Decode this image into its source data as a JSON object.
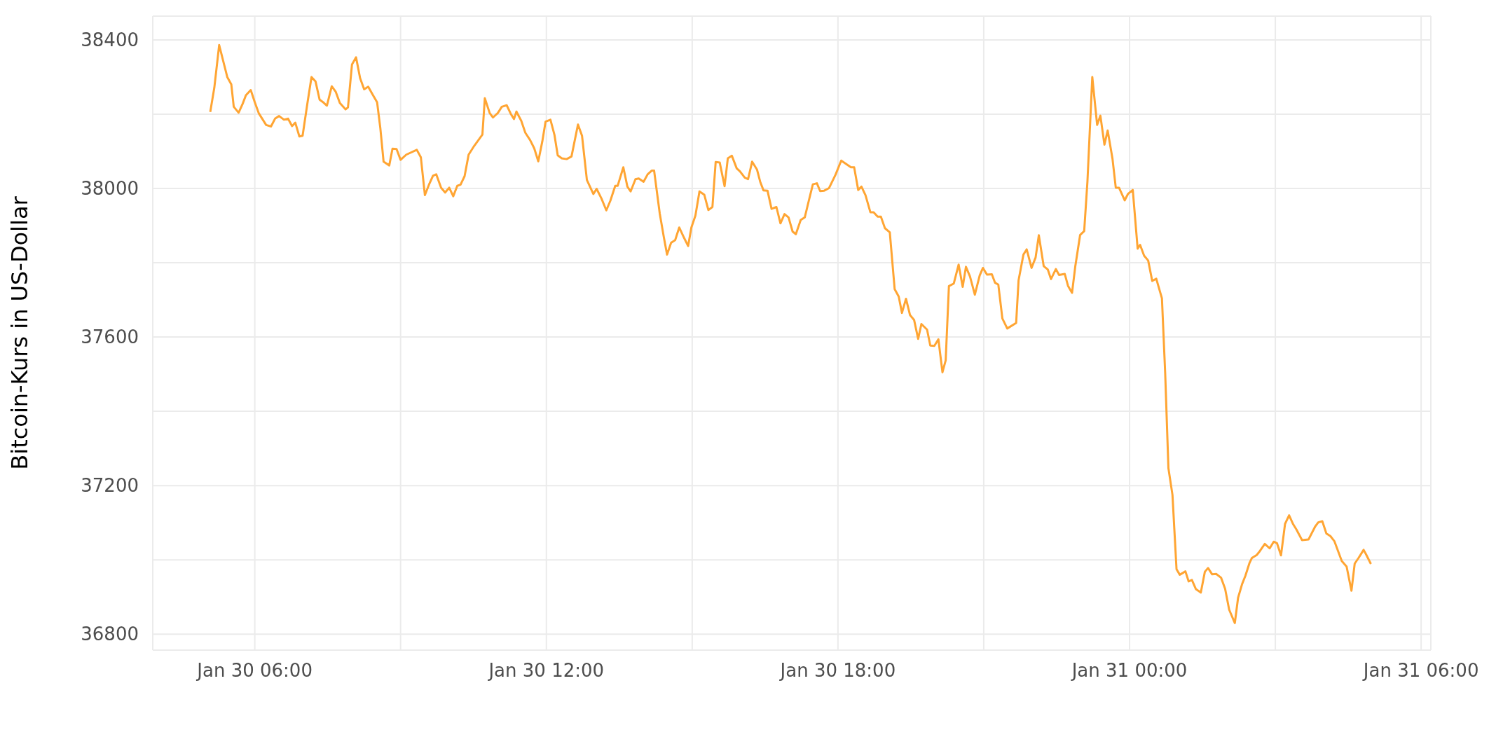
{
  "chart_data": {
    "type": "line",
    "ylabel": "Bitcoin-Kurs in US-Dollar",
    "x": [
      "--01-30T05:05",
      "--01-30T05:10",
      "--01-30T05:16",
      "--01-30T05:26",
      "--01-30T05:31",
      "--01-30T05:34",
      "--01-30T05:40",
      "--01-30T05:45",
      "--01-30T05:49",
      "--01-30T05:55",
      "--01-30T06:00",
      "--01-30T06:05",
      "--01-30T06:14",
      "--01-30T06:20",
      "--01-30T06:25",
      "--01-30T06:30",
      "--01-30T06:36",
      "--01-30T06:41",
      "--01-30T06:46",
      "--01-30T06:50",
      "--01-30T06:55",
      "--01-30T06:59",
      "--01-30T07:05",
      "--01-30T07:10",
      "--01-30T07:15",
      "--01-30T07:20",
      "--01-30T07:25",
      "--01-30T07:29",
      "--01-30T07:35",
      "--01-30T07:40",
      "--01-30T07:45",
      "--01-30T07:52",
      "--01-30T07:55",
      "--01-30T08:00",
      "--01-30T08:05",
      "--01-30T08:10",
      "--01-30T08:15",
      "--01-30T08:20",
      "--01-30T08:26",
      "--01-30T08:31",
      "--01-30T08:35",
      "--01-30T08:39",
      "--01-30T08:46",
      "--01-30T08:50",
      "--01-30T08:55",
      "--01-30T09:00",
      "--01-30T09:07",
      "--01-30T09:20",
      "--01-30T09:25",
      "--01-30T09:30",
      "--01-30T09:35",
      "--01-30T09:40",
      "--01-30T09:44",
      "--01-30T09:50",
      "--01-30T09:55",
      "--01-30T10:00",
      "--01-30T10:05",
      "--01-30T10:10",
      "--01-30T10:14",
      "--01-30T10:19",
      "--01-30T10:24",
      "--01-30T10:31",
      "--01-30T10:41",
      "--01-30T10:44",
      "--01-30T10:50",
      "--01-30T10:54",
      "--01-30T11:00",
      "--01-30T11:05",
      "--01-30T11:11",
      "--01-30T11:16",
      "--01-30T11:20",
      "--01-30T11:23",
      "--01-30T11:29",
      "--01-30T11:34",
      "--01-30T11:40",
      "--01-30T11:45",
      "--01-30T11:50",
      "--01-30T11:55",
      "--01-30T11:59",
      "--01-30T12:05",
      "--01-30T12:10",
      "--01-30T12:14",
      "--01-30T12:19",
      "--01-30T12:25",
      "--01-30T12:31",
      "--01-30T12:39",
      "--01-30T12:44",
      "--01-30T12:50",
      "--01-30T12:58",
      "--01-30T13:02",
      "--01-30T13:08",
      "--01-30T13:14",
      "--01-30T13:19",
      "--01-30T13:25",
      "--01-30T13:28",
      "--01-30T13:35",
      "--01-30T13:40",
      "--01-30T13:44",
      "--01-30T13:50",
      "--01-30T13:54",
      "--01-30T14:00",
      "--01-30T14:05",
      "--01-30T14:10",
      "--01-30T14:13",
      "--01-30T14:20",
      "--01-30T14:25",
      "--01-30T14:29",
      "--01-30T14:34",
      "--01-30T14:39",
      "--01-30T14:44",
      "--01-30T14:50",
      "--01-30T14:55",
      "--01-30T14:59",
      "--01-30T15:04",
      "--01-30T15:09",
      "--01-30T15:15",
      "--01-30T15:20",
      "--01-30T15:25",
      "--01-30T15:29",
      "--01-30T15:34",
      "--01-30T15:40",
      "--01-30T15:44",
      "--01-30T15:49",
      "--01-30T15:55",
      "--01-30T15:59",
      "--01-30T16:05",
      "--01-30T16:09",
      "--01-30T16:14",
      "--01-30T16:20",
      "--01-30T16:24",
      "--01-30T16:28",
      "--01-30T16:33",
      "--01-30T16:38",
      "--01-30T16:44",
      "--01-30T16:49",
      "--01-30T16:54",
      "--01-30T16:59",
      "--01-30T17:04",
      "--01-30T17:08",
      "--01-30T17:14",
      "--01-30T17:19",
      "--01-30T17:24",
      "--01-30T17:29",
      "--01-30T17:34",
      "--01-30T17:38",
      "--01-30T17:43",
      "--01-30T17:49",
      "--01-30T17:57",
      "--01-30T18:04",
      "--01-30T18:10",
      "--01-30T18:16",
      "--01-30T18:20",
      "--01-30T18:25",
      "--01-30T18:29",
      "--01-30T18:34",
      "--01-30T18:40",
      "--01-30T18:44",
      "--01-30T18:49",
      "--01-30T18:53",
      "--01-30T18:58",
      "--01-30T19:04",
      "--01-30T19:10",
      "--01-30T19:15",
      "--01-30T19:19",
      "--01-30T19:24",
      "--01-30T19:29",
      "--01-30T19:34",
      "--01-30T19:39",
      "--01-30T19:43",
      "--01-30T19:50",
      "--01-30T19:54",
      "--01-30T19:59",
      "--01-30T20:04",
      "--01-30T20:09",
      "--01-30T20:13",
      "--01-30T20:17",
      "--01-30T20:23",
      "--01-30T20:29",
      "--01-30T20:34",
      "--01-30T20:38",
      "--01-30T20:43",
      "--01-30T20:49",
      "--01-30T20:55",
      "--01-30T20:59",
      "--01-30T21:04",
      "--01-30T21:10",
      "--01-30T21:14",
      "--01-30T21:18",
      "--01-30T21:23",
      "--01-30T21:29",
      "--01-30T21:40",
      "--01-30T21:43",
      "--01-30T21:49",
      "--01-30T21:53",
      "--01-30T21:59",
      "--01-30T22:04",
      "--01-30T22:08",
      "--01-30T22:14",
      "--01-30T22:19",
      "--01-30T22:23",
      "--01-30T22:29",
      "--01-30T22:33",
      "--01-30T22:40",
      "--01-30T22:44",
      "--01-30T22:49",
      "--01-30T22:53",
      "--01-30T22:59",
      "--01-30T23:04",
      "--01-30T23:08",
      "--01-30T23:14",
      "--01-30T23:20",
      "--01-30T23:24",
      "--01-30T23:29",
      "--01-30T23:33",
      "--01-30T23:39",
      "--01-30T23:43",
      "--01-30T23:47",
      "--01-30T23:54",
      "--01-30T23:58",
      "--01-31T00:04",
      "--01-31T00:10",
      "--01-31T00:13",
      "--01-31T00:18",
      "--01-31T00:23",
      "--01-31T00:28",
      "--01-31T00:33",
      "--01-31T00:40",
      "--01-31T00:44",
      "--01-31T00:48",
      "--01-31T00:53",
      "--01-31T00:58",
      "--01-31T01:02",
      "--01-31T01:09",
      "--01-31T01:13",
      "--01-31T01:17",
      "--01-31T01:22",
      "--01-31T01:28",
      "--01-31T01:33",
      "--01-31T01:37",
      "--01-31T01:42",
      "--01-31T01:47",
      "--01-31T01:53",
      "--01-31T01:58",
      "--01-31T02:03",
      "--01-31T02:10",
      "--01-31T02:14",
      "--01-31T02:19",
      "--01-31T02:23",
      "--01-31T02:28",
      "--01-31T02:31",
      "--01-31T02:37",
      "--01-31T02:41",
      "--01-31T02:47",
      "--01-31T02:53",
      "--01-31T02:58",
      "--01-31T03:02",
      "--01-31T03:07",
      "--01-31T03:12",
      "--01-31T03:17",
      "--01-31T03:22",
      "--01-31T03:26",
      "--01-31T03:33",
      "--01-31T03:41",
      "--01-31T03:49",
      "--01-31T03:53",
      "--01-31T03:58",
      "--01-31T04:03",
      "--01-31T04:08",
      "--01-31T04:13",
      "--01-31T04:22",
      "--01-31T04:28",
      "--01-31T04:34",
      "--01-31T04:38",
      "--01-31T04:43",
      "--01-31T04:49",
      "--01-31T04:52",
      "--01-31T04:58"
    ],
    "series": [
      {
        "color": "#ffa533",
        "values": [
          38206,
          38271,
          38386,
          38300,
          38280,
          38220,
          38204,
          38228,
          38251,
          38265,
          38232,
          38202,
          38171,
          38167,
          38188,
          38195,
          38185,
          38188,
          38168,
          38177,
          38140,
          38142,
          38230,
          38300,
          38288,
          38239,
          38231,
          38223,
          38275,
          38260,
          38230,
          38213,
          38218,
          38334,
          38353,
          38297,
          38267,
          38274,
          38251,
          38232,
          38162,
          38072,
          38062,
          38107,
          38106,
          38077,
          38091,
          38104,
          38084,
          37982,
          38010,
          38034,
          38038,
          38002,
          37989,
          38002,
          37979,
          38007,
          38010,
          38033,
          38091,
          38115,
          38145,
          38243,
          38203,
          38191,
          38203,
          38220,
          38224,
          38201,
          38187,
          38207,
          38182,
          38150,
          38130,
          38108,
          38073,
          38127,
          38180,
          38185,
          38144,
          38089,
          38081,
          38079,
          38086,
          38172,
          38142,
          38023,
          37985,
          37999,
          37973,
          37941,
          37967,
          38007,
          38007,
          38057,
          38005,
          37992,
          38025,
          38027,
          38018,
          38038,
          38048,
          38048,
          37932,
          37869,
          37822,
          37854,
          37861,
          37895,
          37867,
          37845,
          37895,
          37927,
          37992,
          37983,
          37942,
          37950,
          38071,
          38070,
          38006,
          38081,
          38088,
          38054,
          38046,
          38029,
          38025,
          38072,
          38051,
          38018,
          37995,
          37994,
          37945,
          37950,
          37906,
          37931,
          37922,
          37884,
          37877,
          37915,
          37922,
          37967,
          38011,
          38014,
          37993,
          37994,
          38001,
          38037,
          38075,
          38066,
          38057,
          38057,
          37996,
          38005,
          37982,
          37936,
          37936,
          37924,
          37924,
          37893,
          37882,
          37729,
          37709,
          37665,
          37703,
          37659,
          37646,
          37595,
          37635,
          37620,
          37577,
          37576,
          37594,
          37505,
          37537,
          37737,
          37744,
          37795,
          37735,
          37789,
          37763,
          37714,
          37766,
          37786,
          37768,
          37769,
          37746,
          37741,
          37650,
          37623,
          37638,
          37753,
          37822,
          37836,
          37786,
          37814,
          37874,
          37791,
          37782,
          37756,
          37783,
          37767,
          37770,
          37738,
          37719,
          37790,
          37875,
          37885,
          38018,
          38300,
          38171,
          38196,
          38118,
          38156,
          38079,
          38002,
          38002,
          37968,
          37985,
          37996,
          37838,
          37848,
          37819,
          37806,
          37751,
          37757,
          37704,
          37503,
          37247,
          37175,
          36975,
          36960,
          36969,
          36942,
          36946,
          36921,
          36912,
          36968,
          36978,
          36961,
          36962,
          36952,
          36922,
          36866,
          36830,
          36898,
          36935,
          36957,
          36991,
          37005,
          37013,
          37024,
          37043,
          37031,
          37049,
          37045,
          37012,
          37097,
          37120,
          37096,
          37082,
          37053,
          37055,
          37089,
          37101,
          37104,
          37071,
          37064,
          37050,
          36997,
          36982,
          36917,
          36990,
          37006,
          37027,
          37015,
          36989
        ]
      }
    ],
    "xlim": [
      "--01-30T03:54",
      "--01-31T06:12"
    ],
    "xticks": [
      {
        "value": "--01-30T06:00",
        "label": "Jan 30 06:00"
      },
      {
        "value": "--01-30T09:00",
        "label": null
      },
      {
        "value": "--01-30T12:00",
        "label": "Jan 30 12:00"
      },
      {
        "value": "--01-30T15:00",
        "label": null
      },
      {
        "value": "--01-30T18:00",
        "label": "Jan 30 18:00"
      },
      {
        "value": "--01-30T21:00",
        "label": null
      },
      {
        "value": "--01-31T00:00",
        "label": "Jan 31 00:00"
      },
      {
        "value": "--01-31T03:00",
        "label": null
      },
      {
        "value": "--01-31T06:00",
        "label": "Jan 31 06:00"
      }
    ],
    "ylim": [
      36757,
      38464
    ],
    "yticks": [
      36800,
      {
        "value": 37000,
        "label": null
      },
      37200,
      {
        "value": 37400,
        "label": null
      },
      37600,
      {
        "value": 37800,
        "label": null
      },
      38000,
      {
        "value": 38200,
        "label": null
      },
      38400
    ],
    "grid": true,
    "marker": "none"
  }
}
